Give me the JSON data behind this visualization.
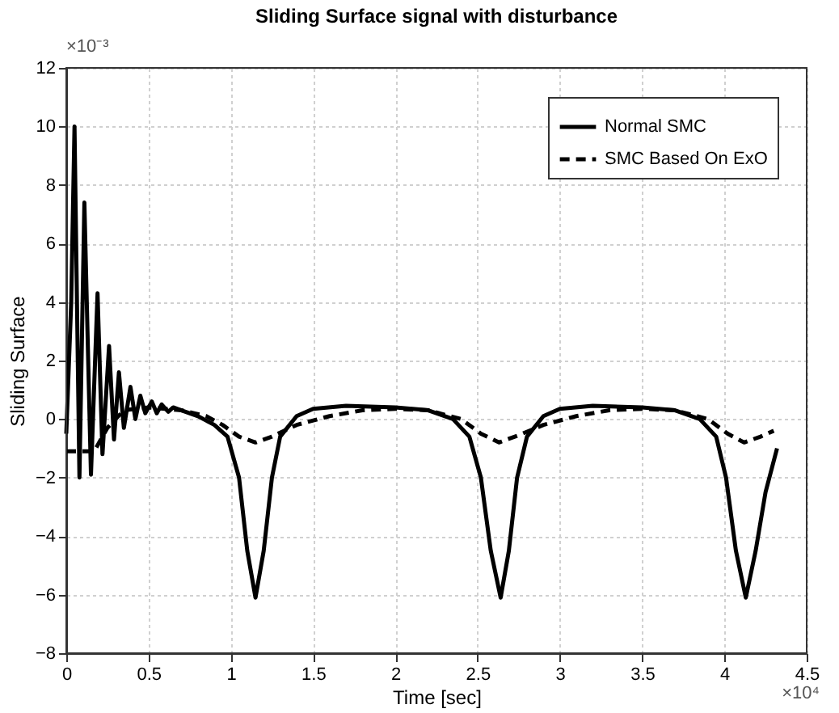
{
  "chart_data": {
    "type": "line",
    "title": "Sliding Surface signal with disturbance",
    "xlabel": "Time [sec]",
    "ylabel": "Sliding Surface",
    "annotations": [
      "×10⁻³",
      "×10⁴"
    ],
    "xlim": [
      0,
      4.5
    ],
    "xticks": [
      0,
      0.5,
      1,
      1.5,
      2,
      2.5,
      3,
      3.5,
      4,
      4.5
    ],
    "ylim": [
      -8,
      12
    ],
    "yticks": [
      -8,
      -6,
      -4,
      -2,
      0,
      2,
      4,
      6,
      8,
      10,
      12
    ],
    "grid": true,
    "legend": "top right",
    "series": [
      {
        "name": "Normal SMC",
        "color": "#000000",
        "line_style": "solid",
        "x": [
          0,
          0.03,
          0.05,
          0.08,
          0.11,
          0.15,
          0.19,
          0.22,
          0.26,
          0.29,
          0.32,
          0.35,
          0.39,
          0.42,
          0.45,
          0.48,
          0.52,
          0.55,
          0.58,
          0.62,
          0.65,
          0.7,
          0.8,
          0.9,
          0.98,
          1.05,
          1.1,
          1.15,
          1.2,
          1.25,
          1.3,
          1.4,
          1.5,
          1.7,
          2.0,
          2.2,
          2.35,
          2.45,
          2.52,
          2.58,
          2.64,
          2.69,
          2.74,
          2.8,
          2.9,
          3.0,
          3.2,
          3.5,
          3.7,
          3.85,
          3.95,
          4.01,
          4.07,
          4.13,
          4.19,
          4.25,
          4.32
        ],
        "values": [
          -0.5,
          4,
          10,
          -2,
          7.4,
          -1.9,
          4.3,
          -1.2,
          2.5,
          -0.7,
          1.6,
          -0.3,
          1.1,
          0,
          0.8,
          0.2,
          0.6,
          0.2,
          0.5,
          0.25,
          0.4,
          0.3,
          0.1,
          -0.2,
          -0.6,
          -2,
          -4.5,
          -6.1,
          -4.5,
          -2,
          -0.6,
          0.1,
          0.35,
          0.45,
          0.4,
          0.3,
          0,
          -0.6,
          -2,
          -4.5,
          -6.1,
          -4.5,
          -2,
          -0.6,
          0.1,
          0.35,
          0.45,
          0.4,
          0.3,
          0,
          -0.6,
          -2,
          -4.5,
          -6.1,
          -4.5,
          -2.5,
          -1
        ]
      },
      {
        "name": "SMC Based On ExO",
        "color": "#000000",
        "line_style": "dashed",
        "x": [
          0,
          0.17,
          0.25,
          0.35,
          0.5,
          0.7,
          0.85,
          0.95,
          1.05,
          1.15,
          1.25,
          1.4,
          1.6,
          1.8,
          2.0,
          2.2,
          2.4,
          2.52,
          2.63,
          2.75,
          2.9,
          3.1,
          3.3,
          3.5,
          3.7,
          3.9,
          4.02,
          4.12,
          4.22,
          4.3
        ],
        "values": [
          -1.1,
          -1.1,
          -0.3,
          0.3,
          0.4,
          0.3,
          0.1,
          -0.2,
          -0.6,
          -0.8,
          -0.6,
          -0.2,
          0.1,
          0.3,
          0.35,
          0.3,
          0,
          -0.5,
          -0.8,
          -0.55,
          -0.2,
          0.1,
          0.3,
          0.35,
          0.3,
          0,
          -0.5,
          -0.8,
          -0.6,
          -0.4
        ]
      }
    ]
  }
}
